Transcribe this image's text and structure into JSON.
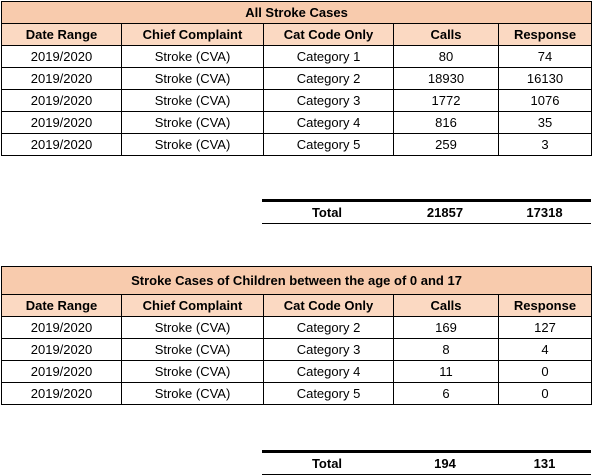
{
  "tables": [
    {
      "title": "All Stroke Cases",
      "columns": [
        "Date Range",
        "Chief Complaint",
        "Cat Code Only",
        "Calls",
        "Response"
      ],
      "rows": [
        [
          "2019/2020",
          "Stroke (CVA)",
          "Category 1",
          80,
          74
        ],
        [
          "2019/2020",
          "Stroke (CVA)",
          "Category 2",
          18930,
          16130
        ],
        [
          "2019/2020",
          "Stroke (CVA)",
          "Category 3",
          1772,
          1076
        ],
        [
          "2019/2020",
          "Stroke (CVA)",
          "Category 4",
          816,
          35
        ],
        [
          "2019/2020",
          "Stroke (CVA)",
          "Category 5",
          259,
          3
        ]
      ],
      "total": [
        "Total",
        21857,
        17318
      ]
    },
    {
      "title": "Stroke Cases of Children between the age of 0 and 17",
      "columns": [
        "Date Range",
        "Chief Complaint",
        "Cat Code Only",
        "Calls",
        "Response"
      ],
      "rows": [
        [
          "2019/2020",
          "Stroke (CVA)",
          "Category 2",
          169,
          127
        ],
        [
          "2019/2020",
          "Stroke (CVA)",
          "Category 3",
          8,
          4
        ],
        [
          "2019/2020",
          "Stroke (CVA)",
          "Category 4",
          11,
          0
        ],
        [
          "2019/2020",
          "Stroke (CVA)",
          "Category 5",
          6,
          0
        ]
      ],
      "total": [
        "Total",
        194,
        131
      ]
    }
  ]
}
